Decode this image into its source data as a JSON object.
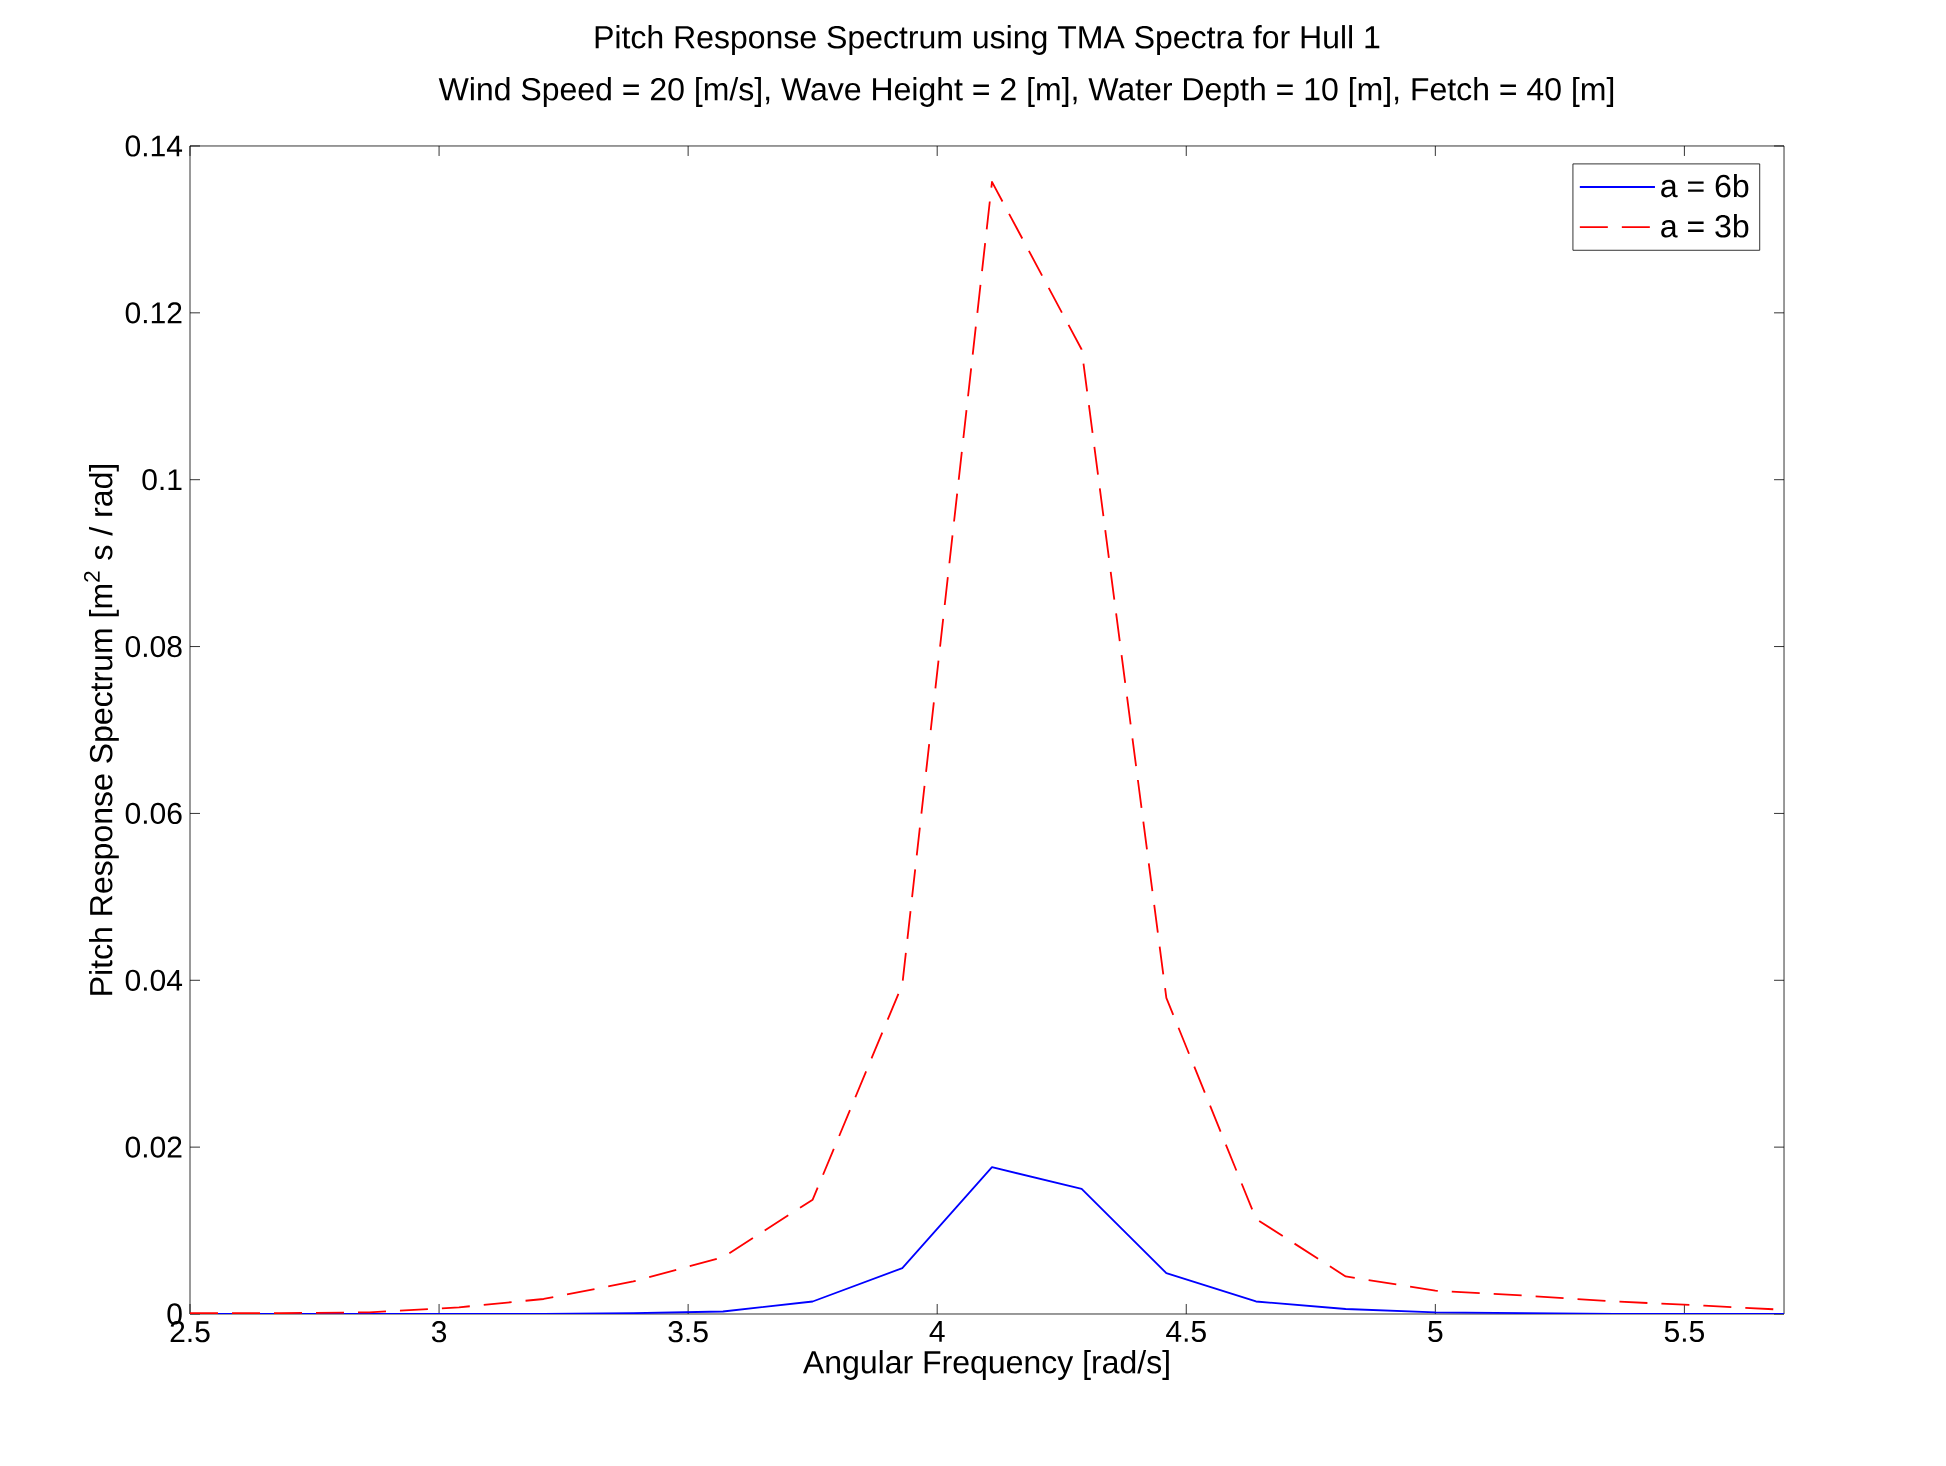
{
  "chart_data": {
    "type": "line",
    "title": "Pitch Response Spectrum using TMA Spectra for Hull 1",
    "subtitle": "Wind Speed = 20 [m/s], Wave Height = 2 [m], Water Depth = 10 [m], Fetch = 40 [m]",
    "xlabel": "Angular Frequency [rad/s]",
    "ylabel": "Pitch Response Spectrum [m$^{2}$ s / rad]",
    "x": [
      2.5,
      2.68,
      2.86,
      3.04,
      3.21,
      3.39,
      3.57,
      3.75,
      3.93,
      4.11,
      4.29,
      4.46,
      4.64,
      4.82,
      5.0,
      5.18,
      5.36,
      5.54,
      5.7
    ],
    "series": [
      {
        "name": "a = 6b",
        "color": "#0000ff",
        "line_style": "solid",
        "values": [
          0,
          0,
          0,
          0,
          0,
          0.0001,
          0.0003,
          0.0015,
          0.0055,
          0.0176,
          0.015,
          0.0049,
          0.0015,
          0.0006,
          0.0002,
          0.0001,
          0,
          0,
          0
        ]
      },
      {
        "name": "a = 3b",
        "color": "#ff0000",
        "line_style": "dashed",
        "values": [
          0.0001,
          0.0001,
          0.0002,
          0.0008,
          0.0018,
          0.0039,
          0.0068,
          0.0137,
          0.0395,
          0.1357,
          0.1156,
          0.0379,
          0.0114,
          0.0045,
          0.0028,
          0.0022,
          0.0015,
          0.001,
          0.0005
        ]
      }
    ],
    "xlim": [
      2.5,
      5.7
    ],
    "ylim": [
      0,
      0.14
    ],
    "xticks": [
      2.5,
      3,
      3.5,
      4,
      4.5,
      5,
      5.5
    ],
    "yticks": [
      0,
      0.02,
      0.04,
      0.06,
      0.08,
      0.1,
      0.12,
      0.14
    ],
    "grid": false,
    "legend": "top right",
    "marker": "none"
  }
}
